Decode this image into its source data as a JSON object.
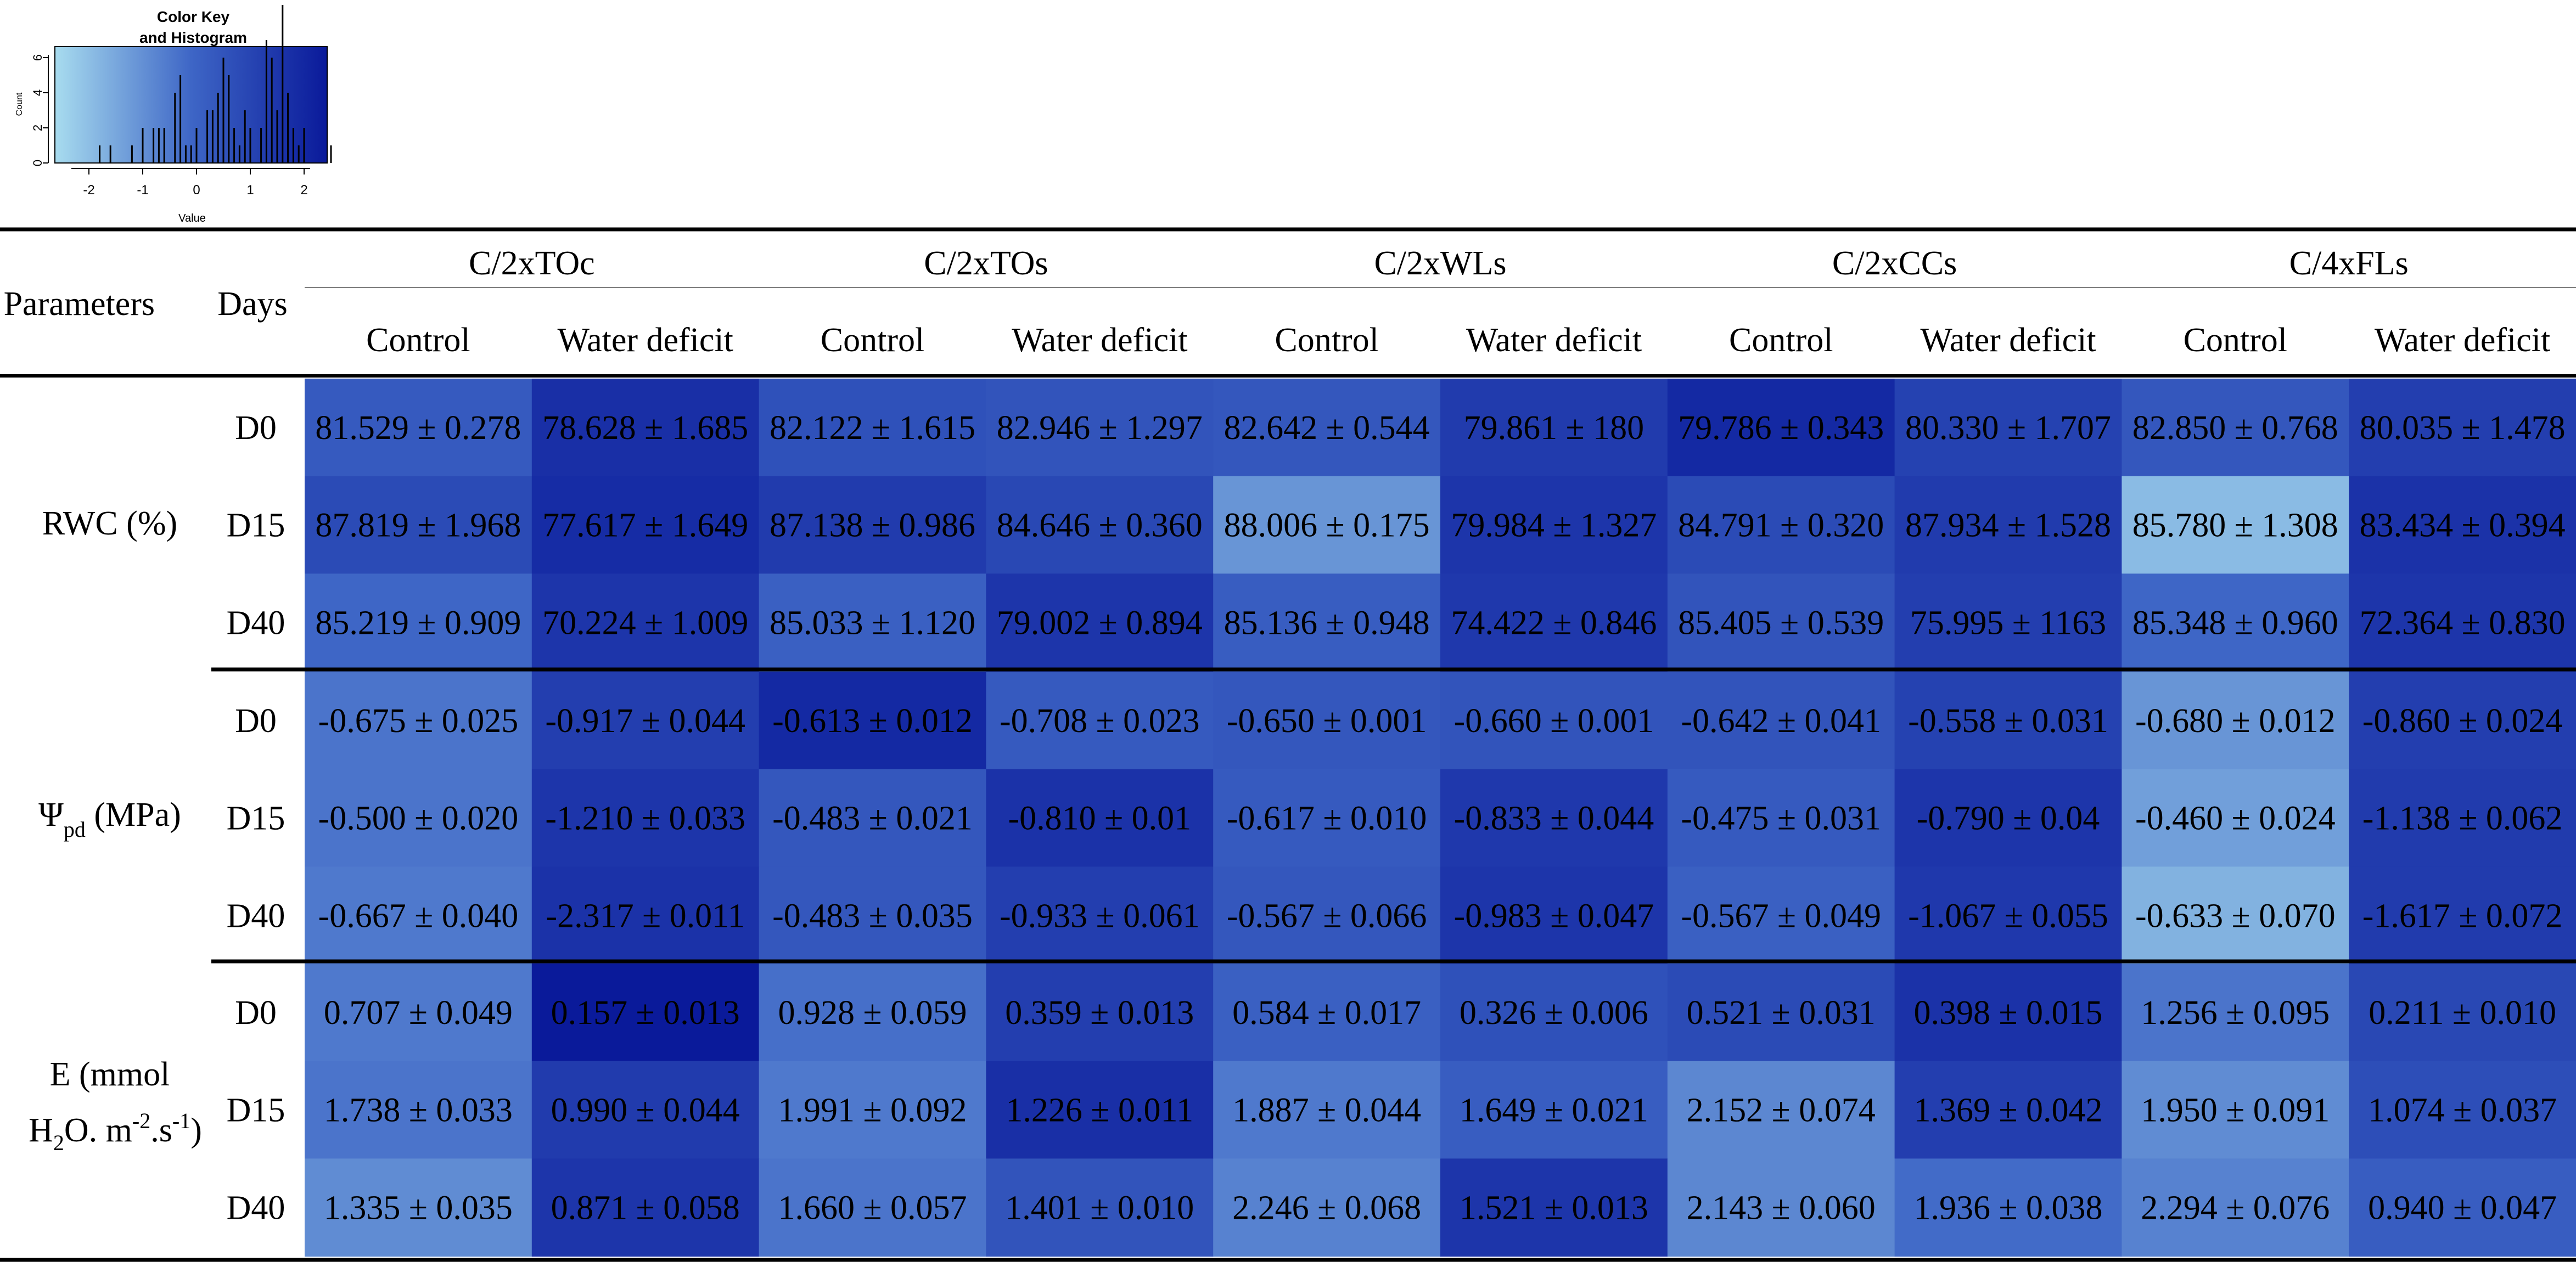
{
  "color_key": {
    "title_line1": "Color Key",
    "title_line2": "and Histogram",
    "ylabel": "Count",
    "xlabel": "Value",
    "x_ticks": [
      "-2",
      "-1",
      "0",
      "1",
      "2"
    ],
    "y_ticks": [
      "0",
      "2",
      "4",
      "6"
    ],
    "gradient_low": "#a8dcef",
    "gradient_high": "#0a1a9a"
  },
  "chart_data": {
    "type": "heatmap",
    "color_scale": {
      "low": "#a8dcef",
      "mid": "#3e66c6",
      "high": "#0a1a9a",
      "value_range": [
        -2.5,
        2.5
      ]
    },
    "header": {
      "row_label": "Parameters",
      "days_label": "Days",
      "groups": [
        "C/2xTOc",
        "C/2xTOs",
        "C/2xWLs",
        "C/2xCCs",
        "C/4xFLs"
      ],
      "treatments": [
        "Control",
        "Water deficit"
      ]
    },
    "parameters": [
      {
        "lines": [
          "RWC (%)"
        ],
        "rows": [
          {
            "day": "D0",
            "cells": [
              "81.529 ± 0.278",
              "78.628 ± 1.685",
              "82.122 ± 1.615",
              "82.946 ± 1.297",
              "82.642 ± 0.544",
              "79.861 ± 180",
              "79.786 ± 0.343",
              "80.330 ± 1.707",
              "82.850 ± 0.768",
              "80.035 ± 1.478"
            ],
            "z": [
              0.4,
              1.8,
              0.7,
              0.6,
              0.5,
              1.4,
              2.0,
              1.2,
              0.5,
              1.3
            ]
          },
          {
            "day": "D15",
            "cells": [
              "87.819 ± 1.968",
              "77.617 ± 1.649",
              "87.138 ± 0.986",
              "84.646 ± 0.360",
              "88.006 ± 0.175",
              "79.984 ± 1.327",
              "84.791 ± 0.320",
              "87.934 ± 1.528",
              "85.780 ± 1.308",
              "83.434 ± 0.394"
            ],
            "z": [
              0.9,
              1.9,
              1.4,
              1.0,
              -1.0,
              1.6,
              0.9,
              1.4,
              -1.8,
              1.7
            ]
          },
          {
            "day": "D40",
            "cells": [
              "85.219 ± 0.909",
              "70.224 ± 1.009",
              "85.033 ± 1.120",
              "79.002 ± 0.894",
              "85.136 ± 0.948",
              "74.422 ± 0.846",
              "85.405 ± 0.539",
              "75.995 ± 1163",
              "85.348 ± 0.960",
              "72.364 ± 0.830"
            ],
            "z": [
              0.0,
              1.6,
              0.2,
              1.6,
              0.3,
              1.5,
              0.6,
              1.3,
              0.0,
              1.6
            ]
          }
        ]
      },
      {
        "lines": [
          "Ψpd (MPa)"
        ],
        "symbol": "Ψ",
        "subscript": "pd",
        "unit": "(MPa)",
        "rows": [
          {
            "day": "D0",
            "cells": [
              "-0.675 ± 0.025",
              "-0.917 ± 0.044",
              "-0.613 ± 0.012",
              "-0.708 ± 0.023",
              "-0.650 ± 0.001",
              "-0.660 ± 0.001",
              "-0.642 ± 0.041",
              "-0.558 ± 0.031",
              "-0.680 ± 0.012",
              "-0.860 ± 0.024"
            ],
            "z": [
              -0.3,
              1.3,
              2.0,
              0.4,
              0.5,
              0.6,
              0.6,
              1.2,
              -1.0,
              1.3
            ]
          },
          {
            "day": "D15",
            "cells": [
              "-0.500 ± 0.020",
              "-1.210 ± 0.033",
              "-0.483 ± 0.021",
              "-0.810 ± 0.01",
              "-0.617 ± 0.010",
              "-0.833 ± 0.044",
              "-0.475 ± 0.031",
              "-0.790 ± 0.04",
              "-0.460 ± 0.024",
              "-1.138 ± 0.062"
            ],
            "z": [
              -0.3,
              1.6,
              0.5,
              1.7,
              0.4,
              1.5,
              0.4,
              1.6,
              -1.2,
              1.4
            ]
          },
          {
            "day": "D40",
            "cells": [
              "-0.667 ± 0.040",
              "-2.317 ± 0.011",
              "-0.483 ± 0.035",
              "-0.933 ± 0.061",
              "-0.567 ± 0.066",
              "-0.983 ± 0.047",
              "-0.567 ± 0.049",
              "-1.067 ± 0.055",
              "-0.633 ± 0.070",
              "-1.617 ± 0.072"
            ],
            "z": [
              -0.4,
              1.7,
              0.5,
              1.3,
              0.5,
              1.6,
              0.2,
              1.5,
              -1.6,
              1.4
            ]
          }
        ]
      },
      {
        "lines": [
          "E (mmol",
          "H2O. m-2.s-1)"
        ],
        "rows": [
          {
            "day": "D0",
            "cells": [
              "0.707 ± 0.049",
              "0.157 ± 0.013",
              "0.928 ± 0.059",
              "0.359 ± 0.013",
              "0.584 ± 0.017",
              "0.326 ± 0.006",
              "0.521 ± 0.031",
              "0.398 ± 0.015",
              "1.256 ± 0.095",
              "0.211 ± 0.010"
            ],
            "z": [
              -0.4,
              2.5,
              -0.2,
              1.3,
              0.2,
              0.7,
              0.9,
              1.7,
              -0.3,
              1.0
            ]
          },
          {
            "day": "D15",
            "cells": [
              "1.738 ± 0.033",
              "0.990 ± 0.044",
              "1.991 ± 0.092",
              "1.226 ± 0.011",
              "1.887 ± 0.044",
              "1.649 ± 0.021",
              "2.152 ± 0.074",
              "1.369 ± 0.042",
              "1.950 ± 0.091",
              "1.074 ± 0.037"
            ],
            "z": [
              -0.3,
              1.4,
              -0.4,
              1.8,
              -0.4,
              0.3,
              -0.7,
              1.3,
              -0.8,
              0.8
            ]
          },
          {
            "day": "D40",
            "cells": [
              "1.335 ± 0.035",
              "0.871 ± 0.058",
              "1.660 ± 0.057",
              "1.401 ± 0.010",
              "2.246 ± 0.068",
              "1.521 ± 0.013",
              "2.143 ± 0.060",
              "1.936 ± 0.038",
              "2.294 ± 0.076",
              "0.940 ± 0.047"
            ],
            "z": [
              -0.8,
              1.6,
              -0.3,
              0.6,
              -0.6,
              1.6,
              -0.7,
              -0.1,
              -0.6,
              0.3
            ]
          }
        ]
      }
    ]
  }
}
